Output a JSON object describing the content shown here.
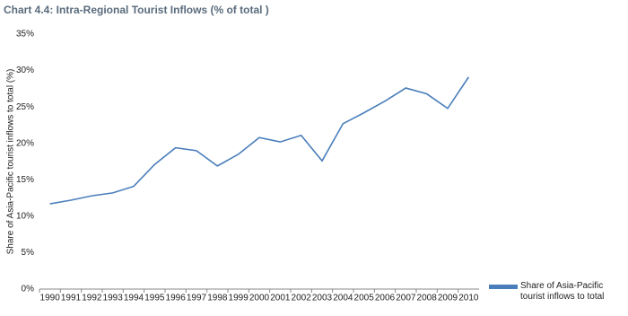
{
  "chart_data": {
    "type": "line",
    "title": "Chart 4.4: Intra-Regional Tourist Inflows (% of total )",
    "y_label": "Share of Asia-Pacific tourist inflows to total (%)",
    "categories": [
      "1990",
      "1991",
      "1992",
      "1993",
      "1994",
      "1995",
      "1996",
      "1997",
      "1998",
      "1999",
      "2000",
      "2001",
      "2002",
      "2003",
      "2004",
      "2005",
      "2006",
      "2007",
      "2008",
      "2009",
      "2010"
    ],
    "series": [
      {
        "name": "Share of Asia-Pacific tourist inflows to total",
        "color": "#4a7ebb",
        "values": [
          11.7,
          12.2,
          12.8,
          13.2,
          14.1,
          17.1,
          19.4,
          19.0,
          16.9,
          18.5,
          20.8,
          20.2,
          21.1,
          17.6,
          22.7,
          24.2,
          25.8,
          27.6,
          26.8,
          24.8,
          29.1
        ]
      }
    ],
    "ylim": [
      0,
      35
    ],
    "yticks": [
      {
        "value": 0,
        "label": "0%"
      },
      {
        "value": 5,
        "label": "5%"
      },
      {
        "value": 10,
        "label": "10%"
      },
      {
        "value": 15,
        "label": "15%"
      },
      {
        "value": 20,
        "label": "20%"
      },
      {
        "value": 25,
        "label": "25%"
      },
      {
        "value": 30,
        "label": "30%"
      },
      {
        "value": 35,
        "label": "35%"
      }
    ],
    "grid": false,
    "legend": "bottom-right"
  }
}
